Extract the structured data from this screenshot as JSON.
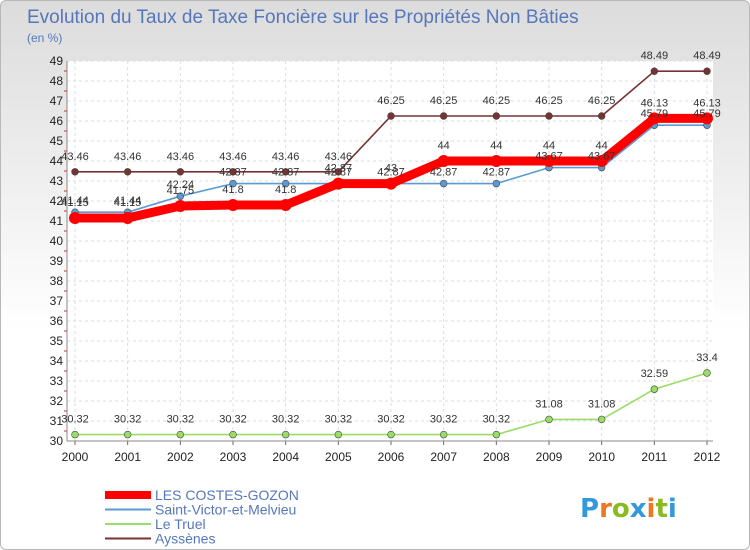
{
  "chart_data": {
    "type": "line",
    "title": "Evolution du Taux de Taxe Foncière sur les Propriétés Non Bâties",
    "subtitle": "(en %)",
    "xlabel": "",
    "ylabel": "(en %)",
    "x": [
      "2000",
      "2001",
      "2002",
      "2003",
      "2004",
      "2005",
      "2006",
      "2007",
      "2008",
      "2009",
      "2010",
      "2011",
      "2012"
    ],
    "ylim": [
      30,
      49
    ],
    "yticks": [
      30,
      31,
      32,
      33,
      34,
      35,
      36,
      37,
      38,
      39,
      40,
      41,
      42,
      43,
      44,
      45,
      46,
      47,
      48,
      49
    ],
    "grid": true,
    "legend_position": "bottom-left",
    "series": [
      {
        "name": "LES COSTES-GOZON",
        "color": "#ff0000",
        "values": [
          41.15,
          41.15,
          41.75,
          41.8,
          41.8,
          42.87,
          42.87,
          44,
          44,
          44,
          44,
          46.13,
          46.13
        ],
        "labels": [
          "41.15",
          "41.15",
          "41.75",
          "41.8",
          "41.8",
          "42.87",
          "43",
          "44",
          "44",
          "44",
          "44",
          "46.13",
          "46.13"
        ]
      },
      {
        "name": "Saint-Victor-et-Melvieu",
        "color": "#5b9bd5",
        "values": [
          41.44,
          41.44,
          42.24,
          42.87,
          42.87,
          42.87,
          42.87,
          42.87,
          42.87,
          43.67,
          43.67,
          45.79,
          45.79
        ],
        "labels": [
          "41.44",
          "41.44",
          "42.24",
          "42.87",
          "42.87",
          "42.87",
          "42.87",
          "42.87",
          "42.87",
          "43.67",
          "43.67",
          "45.79",
          "45.79"
        ]
      },
      {
        "name": "Le Truel",
        "color": "#99dd66",
        "values": [
          30.32,
          30.32,
          30.32,
          30.32,
          30.32,
          30.32,
          30.32,
          30.32,
          30.32,
          31.08,
          31.08,
          32.59,
          33.4
        ],
        "labels": [
          "30.32",
          "30.32",
          "30.32",
          "30.32",
          "30.32",
          "30.32",
          "30.32",
          "30.32",
          "30.32",
          "31.08",
          "31.08",
          "32.59",
          "33.4"
        ]
      },
      {
        "name": "Ayssènes",
        "color": "#773333",
        "values": [
          43.46,
          43.46,
          43.46,
          43.46,
          43.46,
          43.46,
          46.25,
          46.25,
          46.25,
          46.25,
          46.25,
          48.49,
          48.49
        ],
        "labels": [
          "43.46",
          "43.46",
          "43.46",
          "43.46",
          "43.46",
          "43.46",
          "46.25",
          "46.25",
          "46.25",
          "46.25",
          "46.25",
          "48.49",
          "48.49"
        ]
      }
    ]
  },
  "logo": {
    "letters": [
      "P",
      "r",
      "o",
      "x",
      "i",
      "t",
      "i"
    ],
    "colors": [
      "#3399dd",
      "#ee7722",
      "#88bb22",
      "#3399dd",
      "#ee7722",
      "#88bb22",
      "#3399dd"
    ]
  }
}
